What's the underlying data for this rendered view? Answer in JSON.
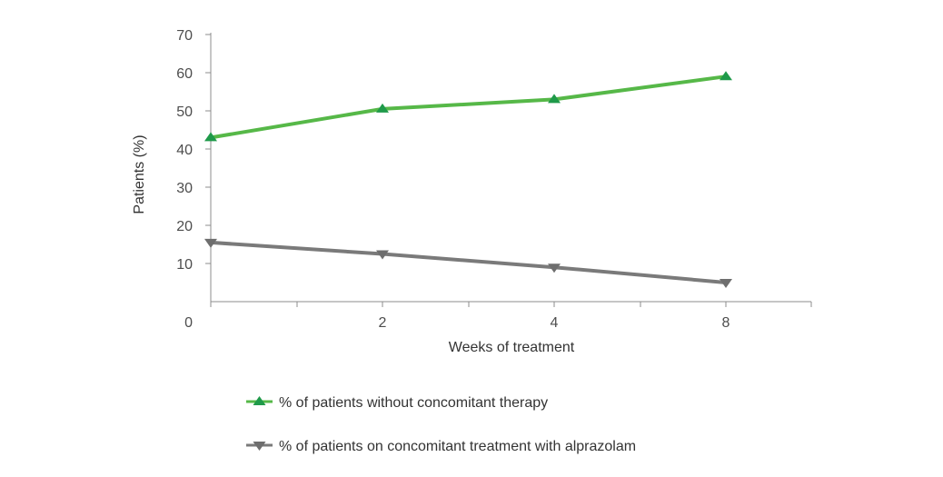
{
  "chart_data": {
    "type": "line",
    "x": [
      "0",
      "2",
      "4",
      "8"
    ],
    "xlabel": "Weeks of treatment",
    "ylabel": "Patients (%)",
    "ylim": [
      0,
      70
    ],
    "yticks": [
      "0",
      "10",
      "20",
      "30",
      "40",
      "50",
      "60",
      "70"
    ],
    "grid": false,
    "legend_position": "bottom",
    "series": [
      {
        "name": "% of patients without concomitant therapy",
        "values": [
          43,
          50.5,
          53,
          59
        ],
        "color": "#56b848",
        "marker_color": "#1f9a4a",
        "marker": "triangle-up"
      },
      {
        "name": "% of patients on concomitant treatment with alprazolam",
        "values": [
          15.5,
          12.5,
          9,
          5
        ],
        "color": "#7a7a7a",
        "marker_color": "#6e6e6e",
        "marker": "triangle-down"
      }
    ]
  }
}
